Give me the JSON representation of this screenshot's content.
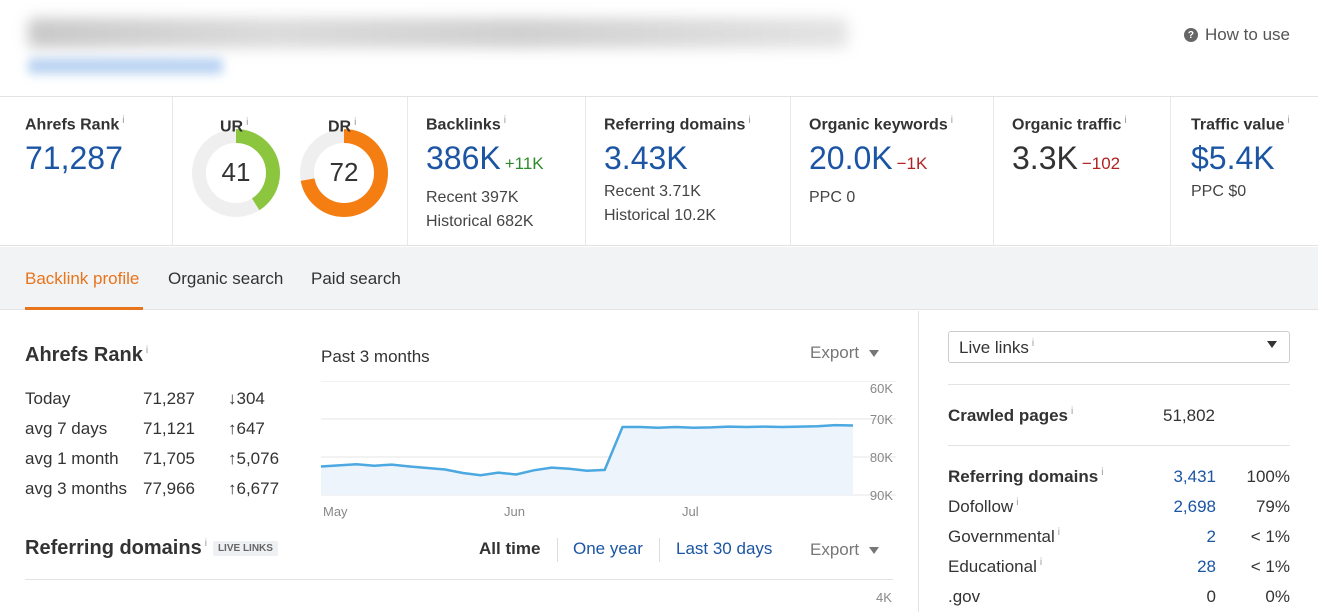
{
  "header": {
    "how_to_use": "How to use"
  },
  "metrics": {
    "ahrefs_rank": {
      "label": "Ahrefs Rank",
      "value": "71,287"
    },
    "ur": {
      "label": "UR",
      "value": "41",
      "level": 41,
      "color": "#8cc63f"
    },
    "dr": {
      "label": "DR",
      "value": "72",
      "level": 72,
      "color": "#f57e13"
    },
    "backlinks": {
      "label": "Backlinks",
      "value": "386K",
      "delta": "+11K",
      "recent": "Recent 397K",
      "historical": "Historical 682K"
    },
    "referring_domains": {
      "label": "Referring domains",
      "value": "3.43K",
      "recent": "Recent 3.71K",
      "historical": "Historical 10.2K"
    },
    "organic_keywords": {
      "label": "Organic keywords",
      "value": "20.0K",
      "delta": "−1K",
      "ppc": "PPC 0"
    },
    "organic_traffic": {
      "label": "Organic traffic",
      "value": "3.3K",
      "delta": "−102"
    },
    "traffic_value": {
      "label": "Traffic value",
      "value": "$5.4K",
      "ppc": "PPC $0"
    }
  },
  "tabs": [
    {
      "label": "Backlink profile",
      "active": true
    },
    {
      "label": "Organic search",
      "active": false
    },
    {
      "label": "Paid search",
      "active": false
    }
  ],
  "rank_section": {
    "title": "Ahrefs Rank",
    "rows": [
      {
        "label": "Today",
        "value": "71,287",
        "change": "304",
        "direction": "down"
      },
      {
        "label": "avg 7 days",
        "value": "71,121",
        "change": "647",
        "direction": "up"
      },
      {
        "label": "avg 1 month",
        "value": "71,705",
        "change": "5,076",
        "direction": "up"
      },
      {
        "label": "avg 3 months",
        "value": "77,966",
        "change": "6,677",
        "direction": "up"
      }
    ]
  },
  "chart_data": {
    "type": "area",
    "title": "Past 3 months",
    "export_label": "Export",
    "x_labels": [
      "May",
      "Jun",
      "Jul"
    ],
    "y_ticks": [
      "60K",
      "70K",
      "80K",
      "90K"
    ],
    "y_reversed": true,
    "ylim": [
      60000,
      90000
    ],
    "series": [
      {
        "color": "#4ba8e0",
        "x": [
          0,
          3,
          6,
          9,
          12,
          15,
          18,
          21,
          24,
          27,
          30,
          33,
          36,
          39,
          42,
          45,
          48,
          51,
          54,
          57,
          60,
          63,
          66,
          69,
          72,
          75,
          78,
          81,
          84,
          87,
          90
        ],
        "y": [
          82500,
          82200,
          81900,
          82300,
          82000,
          82500,
          82900,
          83300,
          84200,
          84800,
          84100,
          84600,
          83500,
          82800,
          83100,
          83600,
          83400,
          72100,
          72100,
          72300,
          72100,
          72300,
          72200,
          72000,
          72100,
          72000,
          72100,
          72000,
          71900,
          71600,
          71700
        ]
      }
    ]
  },
  "referring_section": {
    "title": "Referring domains",
    "badge": "LIVE LINKS",
    "ranges": [
      {
        "label": "All time",
        "active": true
      },
      {
        "label": "One year",
        "active": false
      },
      {
        "label": "Last 30 days",
        "active": false
      }
    ],
    "export_label": "Export",
    "y_tick_top": "4K"
  },
  "sidebar": {
    "select_value": "Live links",
    "crawled_pages": {
      "label": "Crawled pages",
      "value": "51,802"
    },
    "rows": [
      {
        "label": "Referring domains",
        "value": "3,431",
        "pct": "100%",
        "bold": true
      },
      {
        "label": "Dofollow",
        "value": "2,698",
        "pct": "79%",
        "bold": false
      },
      {
        "label": "Governmental",
        "value": "2",
        "pct": "< 1%",
        "bold": false
      },
      {
        "label": "Educational",
        "value": "28",
        "pct": "< 1%",
        "bold": false
      },
      {
        "label": ".gov",
        "value": "0",
        "pct": "0%",
        "bold": false
      }
    ]
  }
}
